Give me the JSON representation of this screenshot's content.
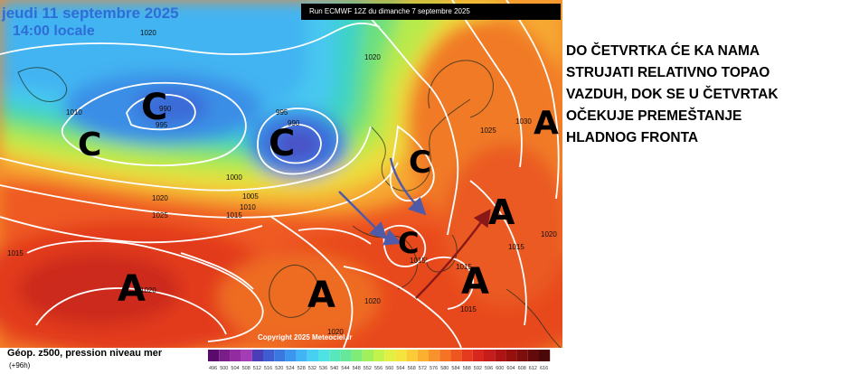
{
  "map": {
    "title_date": "jeudi 11 septembre 2025",
    "title_time": "14:00 locale",
    "run_label": "Run ECMWF 12Z du dimanche 7 septembre 2025",
    "copyright": "Copyright 2025 Meteociel.fr",
    "systems": [
      {
        "label": "C",
        "kind": "low"
      },
      {
        "label": "C",
        "kind": "low"
      },
      {
        "label": "C",
        "kind": "low"
      },
      {
        "label": "C",
        "kind": "low"
      },
      {
        "label": "C",
        "kind": "low"
      },
      {
        "label": "A",
        "kind": "high"
      },
      {
        "label": "A",
        "kind": "high"
      },
      {
        "label": "A",
        "kind": "high"
      },
      {
        "label": "A",
        "kind": "high"
      },
      {
        "label": "A",
        "kind": "high"
      }
    ],
    "isobars": [
      "1020",
      "1010",
      "990",
      "995",
      "995",
      "990",
      "1020",
      "1000",
      "1005",
      "1010",
      "1015",
      "1020",
      "1025",
      "1015",
      "1020",
      "1015",
      "1015",
      "1020",
      "1020",
      "1015",
      "1030",
      "1025",
      "1020",
      "1015"
    ]
  },
  "annotation": {
    "lines": [
      "DO ČETVRTKA ĆE KA NAMA",
      "STRUJATI RELATIVNO TOPAO",
      "VAZDUH, DOK SE U ČETVRTAK",
      "OČEKUJE PREMEŠTANJE",
      "HLADNOG FRONTA"
    ]
  },
  "legend": {
    "title": "Géop. z500, pression niveau mer",
    "subtitle": "(+96h)",
    "scale_labels": [
      "496",
      "500",
      "504",
      "508",
      "512",
      "516",
      "520",
      "524",
      "528",
      "532",
      "536",
      "540",
      "544",
      "548",
      "552",
      "556",
      "560",
      "564",
      "568",
      "572",
      "576",
      "580",
      "584",
      "588",
      "592",
      "596",
      "600",
      "604",
      "608",
      "612",
      "616"
    ],
    "scale_colors": [
      "#5a0a6a",
      "#7a1e8a",
      "#922aa0",
      "#a43cb6",
      "#4b3db8",
      "#3f5cd0",
      "#3a78e0",
      "#3c96ee",
      "#40b4f4",
      "#48cff4",
      "#4fe2e4",
      "#58e6bc",
      "#66e89a",
      "#80ec78",
      "#a0f05c",
      "#c2f24c",
      "#e2f044",
      "#f6e43e",
      "#fccc38",
      "#fcb030",
      "#f8922a",
      "#f47424",
      "#ee5620",
      "#e43a1e",
      "#d8281e",
      "#c61c1c",
      "#ae1414",
      "#96100e",
      "#7e0e0c",
      "#640a0a",
      "#4a0808"
    ]
  }
}
